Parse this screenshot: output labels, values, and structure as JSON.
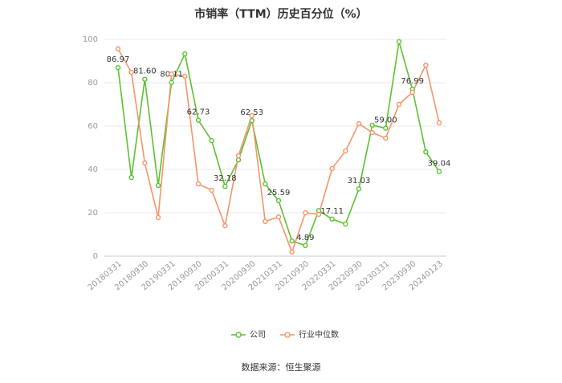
{
  "chart_data": {
    "type": "line",
    "title": "市销率（TTM）历史百分位（%）",
    "source": "数据来源：恒生聚源",
    "categories": [
      "20180331",
      null,
      "20180930",
      null,
      "20190331",
      null,
      "20190930",
      null,
      "20200331",
      null,
      "20200930",
      null,
      "20210331",
      null,
      "20210930",
      null,
      "20220331",
      null,
      "20220930",
      null,
      "20230331",
      null,
      "20230930",
      null,
      "20240123"
    ],
    "series": [
      {
        "name": "公司",
        "color": "#5cc130",
        "values": [
          86.97,
          36.3,
          81.6,
          32.6,
          80.11,
          93.3,
          62.73,
          53.3,
          32.18,
          44.4,
          62.53,
          33.3,
          25.59,
          7,
          4.89,
          21,
          17.11,
          14.8,
          31.03,
          60.4,
          59.0,
          98.9,
          76.99,
          48.1,
          39.04
        ],
        "value_labels": [
          "86.97",
          null,
          "81.60",
          null,
          "80.11",
          null,
          "62.73",
          null,
          "32.18",
          null,
          "62.53",
          null,
          "25.59",
          null,
          "4.89",
          null,
          "17.11",
          null,
          "31.03",
          null,
          "59.00",
          null,
          "76.99",
          null,
          "39.04"
        ]
      },
      {
        "name": "行业中位数",
        "color": "#f4956a",
        "values": [
          95.6,
          84.8,
          43,
          17.8,
          84,
          83,
          33.3,
          30.4,
          14,
          46.3,
          64.8,
          16,
          18.1,
          1.9,
          20,
          19.3,
          40.4,
          48.5,
          61.1,
          57,
          54.4,
          70,
          75.6,
          88.1,
          61.5
        ]
      }
    ],
    "ylim": [
      0,
      100
    ],
    "yticks": [
      0,
      20,
      40,
      60,
      80,
      100
    ],
    "grid": true,
    "legend": "bottom"
  }
}
